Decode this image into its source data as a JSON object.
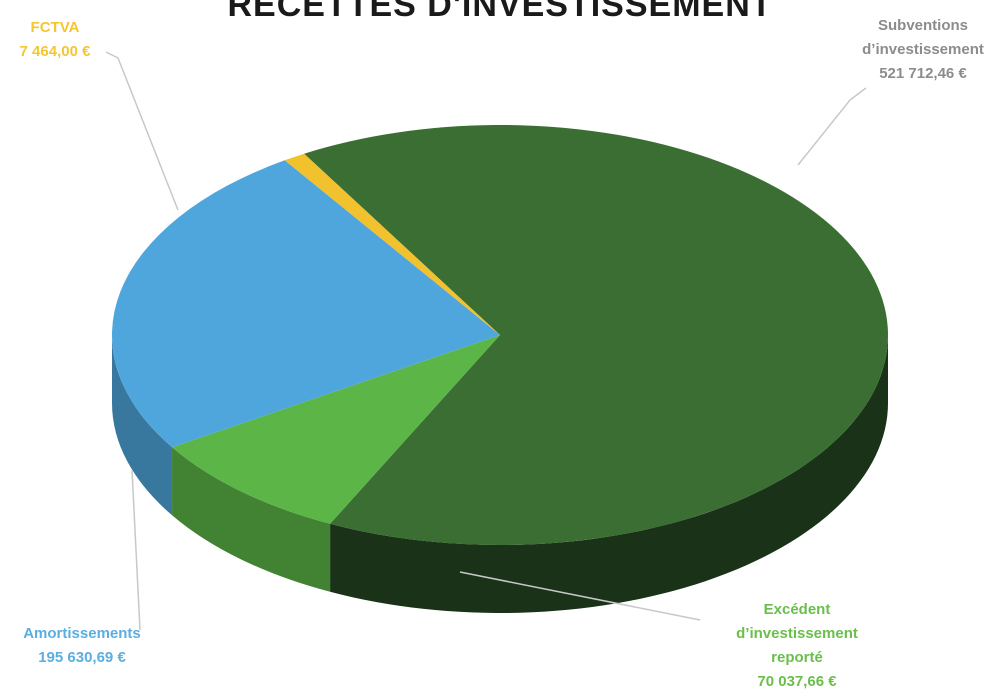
{
  "chart_data": {
    "type": "pie",
    "title": "RECETTES D'INVESTISSEMENT",
    "categories": [
      "Subventions d'investissement",
      "Excédent d'investissement reporté",
      "Amortissements",
      "FCTVA"
    ],
    "values": [
      521712.46,
      70037.66,
      195630.69,
      7464.0
    ],
    "colors": [
      "#3a6e33",
      "#5cb547",
      "#4ea6dc",
      "#f2c12e"
    ],
    "labels": [
      {
        "lines": [
          "Subventions",
          "d’investissement",
          "521 712,46 €"
        ],
        "color": "#8c8c8c"
      },
      {
        "lines": [
          "Excédent",
          "d’investissement",
          "reporté",
          "70 037,66 €"
        ],
        "color": "#6abf4b"
      },
      {
        "lines": [
          "Amortissements",
          "195 630,69 €"
        ],
        "color": "#5aaee0"
      },
      {
        "lines": [
          "FCTVA",
          "7 464,00 €"
        ],
        "color": "#f5c62f"
      }
    ]
  }
}
